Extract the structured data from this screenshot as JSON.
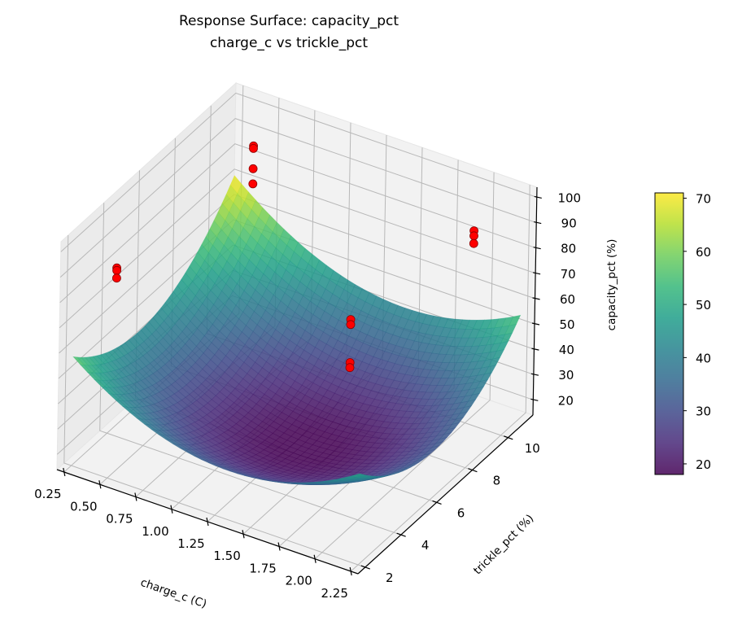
{
  "chart_data": {
    "type": "surface3d",
    "title": "Response Surface: capacity_pct",
    "subtitle": "charge_c vs trickle_pct",
    "xlabel": "charge_c (C)",
    "ylabel": "trickle_pct (%)",
    "zlabel": "capacity_pct (%)",
    "xlim": [
      0.2,
      2.3
    ],
    "ylim": [
      1.6,
      11.4
    ],
    "zlim": [
      14,
      104
    ],
    "xticks": [
      "0.25",
      "0.50",
      "0.75",
      "1.00",
      "1.25",
      "1.50",
      "1.75",
      "2.00",
      "2.25"
    ],
    "yticks": [
      "2",
      "4",
      "6",
      "8",
      "10"
    ],
    "zticks": [
      "20",
      "30",
      "40",
      "50",
      "60",
      "70",
      "80",
      "90",
      "100"
    ],
    "grid": true,
    "surface": {
      "colormap": "viridis",
      "alpha": 0.85,
      "x_range": [
        0.25,
        2.25
      ],
      "y_range": [
        2,
        11
      ],
      "model": {
        "intercept": 18,
        "x_center": 1.25,
        "y_center": 6.5,
        "dx2": 20,
        "dy2": 1,
        "dxdy": -0.5,
        "dx": -5.75,
        "dy": 1.056
      }
    },
    "scatter": {
      "color": "#ff0000",
      "edge_color": "#8b0000",
      "points": [
        {
          "x": 0.5,
          "y": 10,
          "z": 94
        },
        {
          "x": 0.5,
          "y": 10,
          "z": 93
        },
        {
          "x": 0.5,
          "y": 10,
          "z": 85
        },
        {
          "x": 0.5,
          "y": 10,
          "z": 79
        },
        {
          "x": 0.42,
          "y": 3,
          "z": 89
        },
        {
          "x": 0.42,
          "y": 3,
          "z": 88
        },
        {
          "x": 0.42,
          "y": 3,
          "z": 85
        },
        {
          "x": 1.5,
          "y": 7.5,
          "z": 61
        },
        {
          "x": 1.5,
          "y": 7.5,
          "z": 59
        },
        {
          "x": 1.5,
          "y": 7.5,
          "z": 44
        },
        {
          "x": 1.5,
          "y": 7.5,
          "z": 42
        },
        {
          "x": 2.1,
          "y": 9.5,
          "z": 95
        },
        {
          "x": 2.1,
          "y": 9.5,
          "z": 93
        },
        {
          "x": 2.1,
          "y": 9.5,
          "z": 90
        }
      ]
    },
    "colorbar": {
      "range": [
        18,
        71
      ],
      "ticks": [
        "20",
        "30",
        "40",
        "50",
        "60",
        "70"
      ]
    }
  }
}
